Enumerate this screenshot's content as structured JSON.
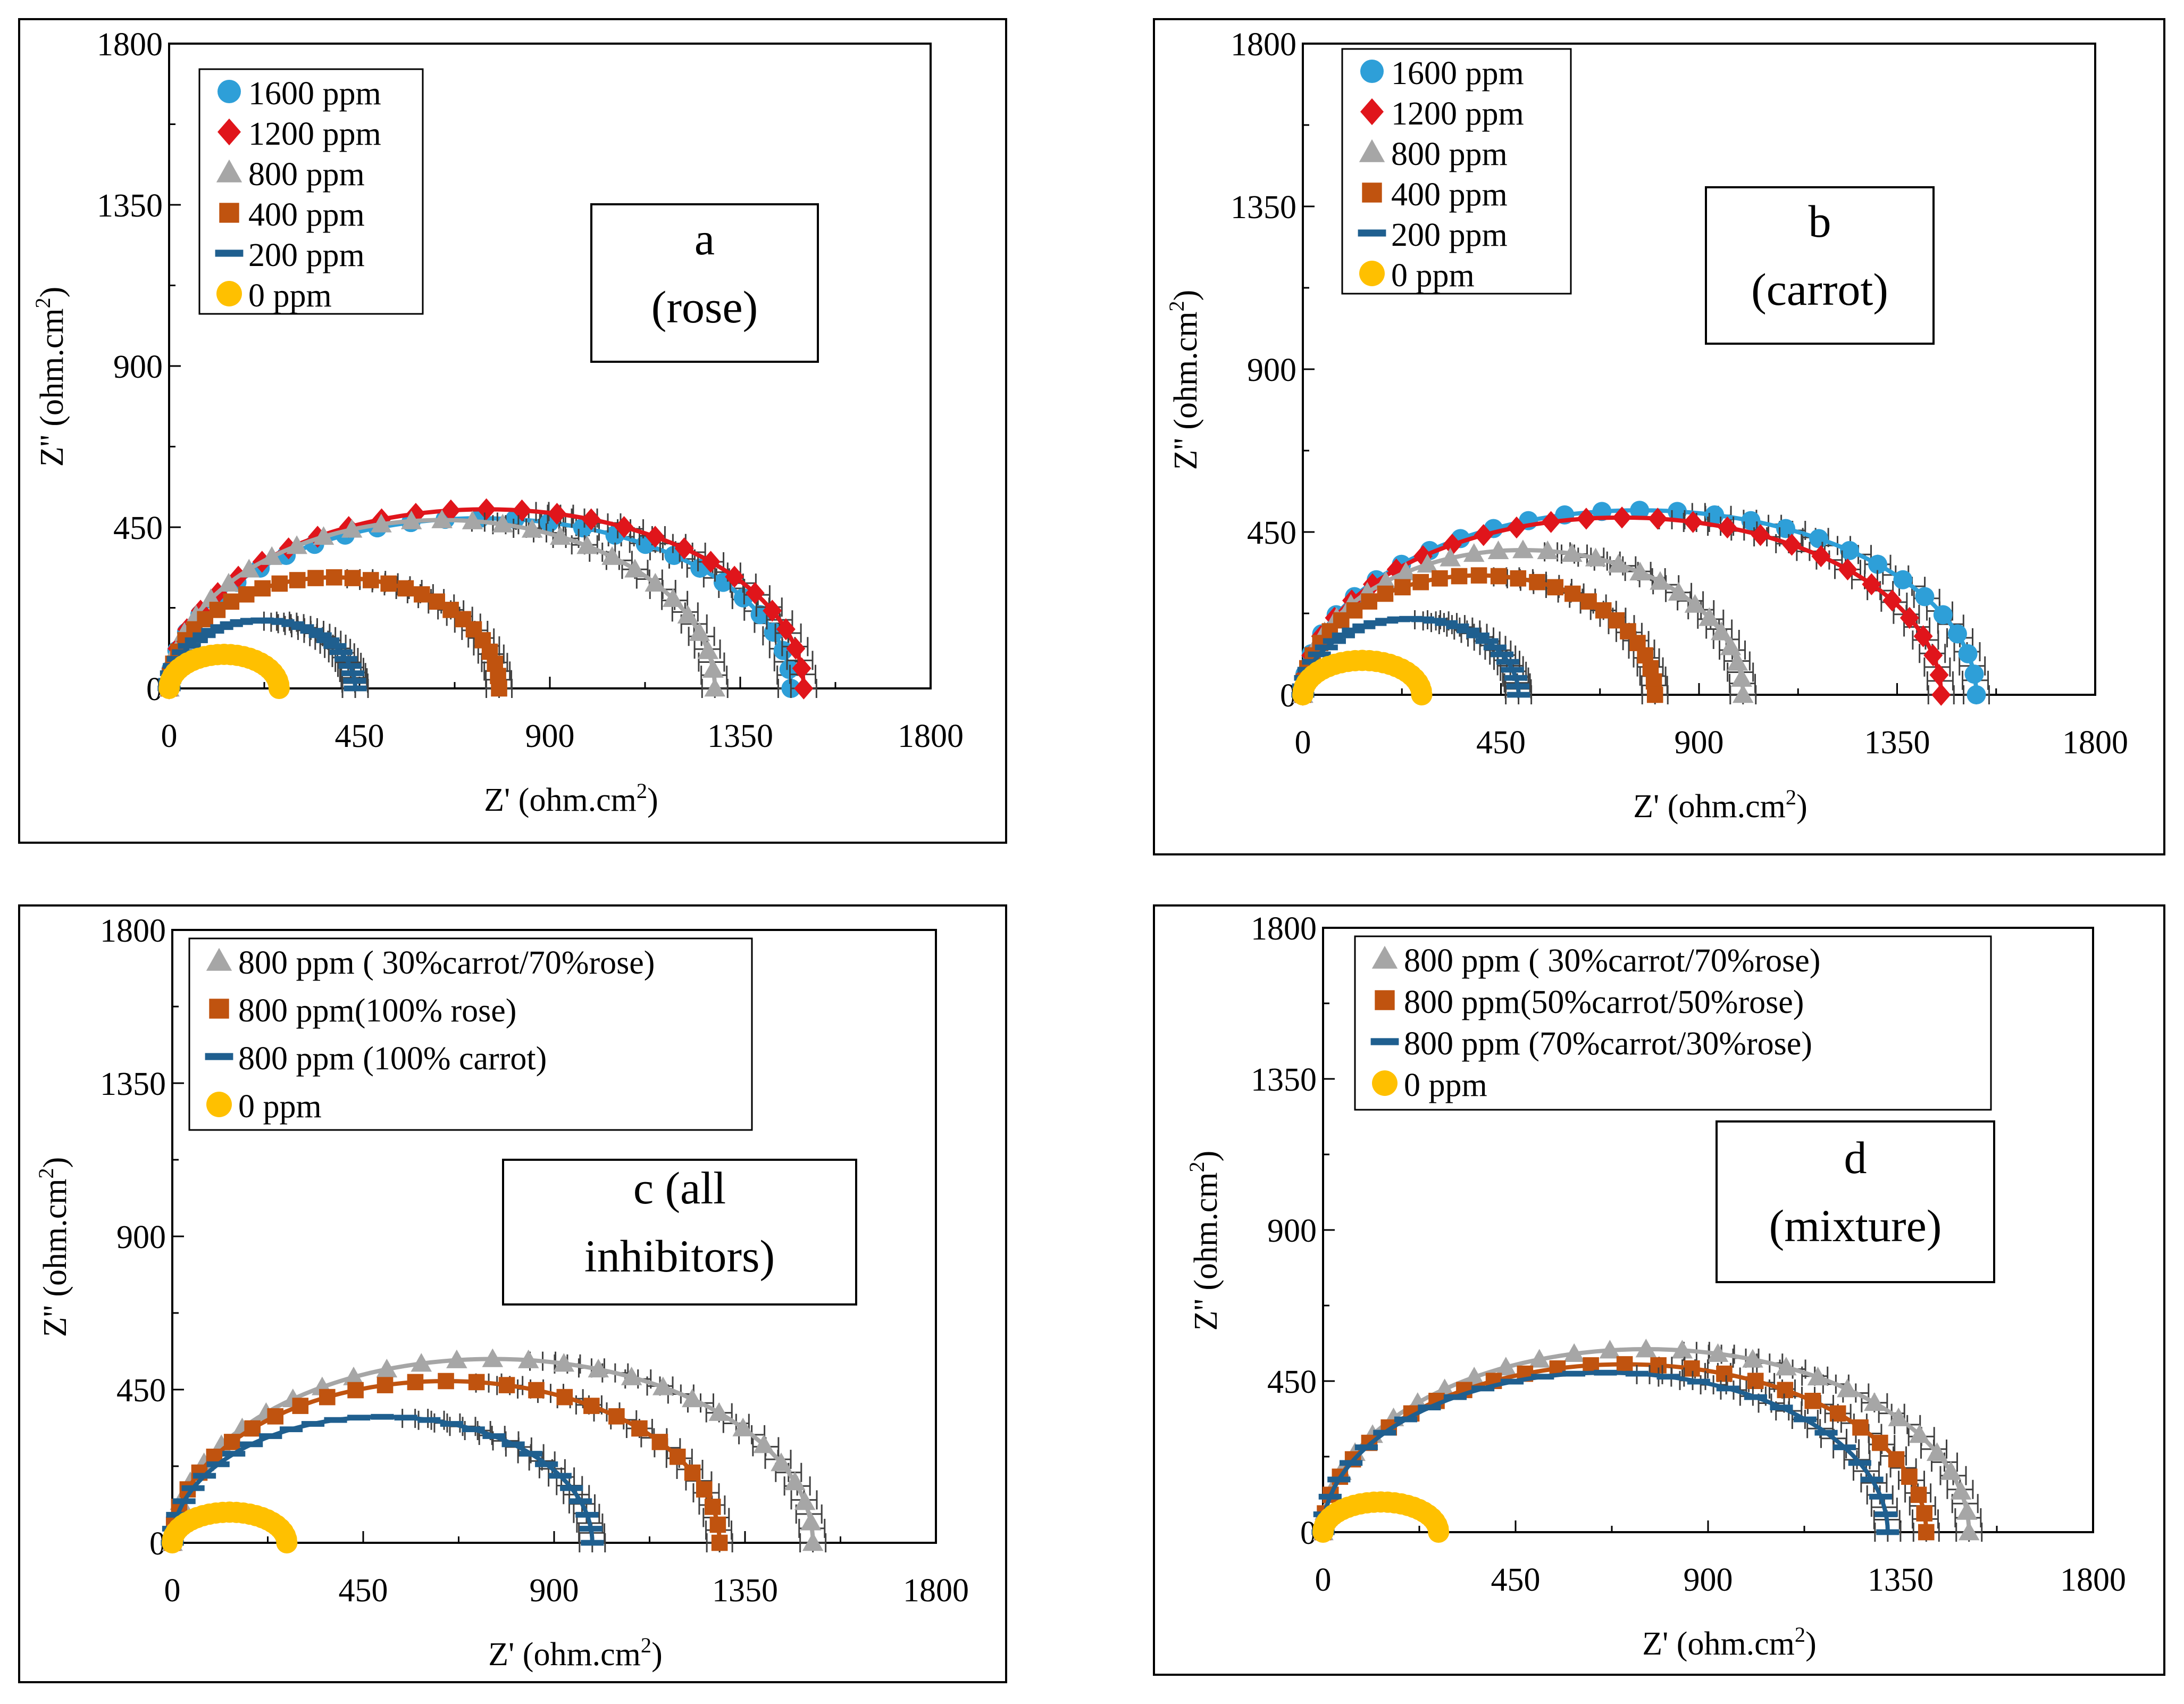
{
  "figure": {
    "panels": [
      {
        "id": "a",
        "label_lines": [
          "a",
          "(rose)"
        ],
        "xlabel": "Z' (ohm.cm2)",
        "ylabel": "Z'' (ohm.cm2)",
        "chart_ref": 0
      },
      {
        "id": "b",
        "label_lines": [
          "b",
          "(carrot)"
        ],
        "xlabel": "Z' (ohm.cm2)",
        "ylabel": "Z'' (ohm.cm2)",
        "chart_ref": 1
      },
      {
        "id": "c",
        "label_lines": [
          "c (all",
          "inhibitors)"
        ],
        "xlabel": "Z' (ohm.cm2)",
        "ylabel": "Z'' (ohm.cm2)",
        "chart_ref": 2
      },
      {
        "id": "d",
        "label_lines": [
          "d",
          "(mixture)"
        ],
        "xlabel": "Z' (ohm.cm2)",
        "ylabel": "Z'' (ohm.cm2)",
        "chart_ref": 3
      }
    ]
  },
  "colors": {
    "blue": "#2e9fd8",
    "red": "#e0151b",
    "gray": "#a6a6a6",
    "orange": "#c0530f",
    "navy": "#1f5f8f",
    "yellow": "#ffc000",
    "errorbar": "#404040"
  },
  "chart_data": [
    {
      "type": "scatter",
      "title": "a (rose)",
      "xlabel": "Z' (ohm.cm2)",
      "ylabel": "Z'' (ohm.cm2)",
      "xlim": [
        0,
        1800
      ],
      "ylim": [
        0,
        1800
      ],
      "xticks": [
        0,
        450,
        900,
        1350,
        1800
      ],
      "yticks": [
        0,
        450,
        900,
        1350,
        1800
      ],
      "legend_position": "top-left",
      "series": [
        {
          "name": "1600 ppm",
          "marker": "circle",
          "color": "blue",
          "rct": 1470,
          "peak": 475,
          "center": 735,
          "r2": 0,
          "z2": 0,
          "errorbars": true
        },
        {
          "name": "1200 ppm",
          "marker": "diamond",
          "color": "red",
          "rct": 1440,
          "peak": 500,
          "center": 750,
          "r2": 0,
          "z2": 0,
          "errorbars": true
        },
        {
          "name": "800 ppm",
          "marker": "triangle",
          "color": "gray",
          "rct": 1290,
          "peak": 470,
          "center": 645,
          "r2": 0,
          "z2": 0,
          "errorbars": true
        },
        {
          "name": "400 ppm",
          "marker": "square",
          "color": "orange",
          "rct": 780,
          "peak": 310,
          "center": 390,
          "r2": 0,
          "z2": 0,
          "errorbars": true
        },
        {
          "name": "200 ppm",
          "marker": "dash",
          "color": "navy",
          "rct": 440,
          "peak": 190,
          "center": 220,
          "r2": 0,
          "z2": 0,
          "errorbars": true
        },
        {
          "name": "0 ppm",
          "marker": "circle",
          "color": "yellow",
          "rct": 260,
          "peak": 95,
          "center": 130,
          "r2": 0,
          "z2": 0,
          "errorbars": false
        }
      ]
    },
    {
      "type": "scatter",
      "title": "b (carrot)",
      "xlabel": "Z' (ohm.cm2)",
      "ylabel": "Z'' (ohm.cm2)",
      "xlim": [
        0,
        1800
      ],
      "ylim": [
        0,
        1800
      ],
      "xticks": [
        0,
        450,
        900,
        1350,
        1800
      ],
      "yticks": [
        0,
        450,
        900,
        1350,
        1800
      ],
      "legend_position": "top-left",
      "series": [
        {
          "name": "1600 ppm",
          "marker": "circle",
          "color": "blue",
          "rct": 1530,
          "peak": 510,
          "center": 765,
          "r2": 0,
          "z2": 0,
          "errorbars": true
        },
        {
          "name": "1200 ppm",
          "marker": "diamond",
          "color": "red",
          "rct": 1450,
          "peak": 490,
          "center": 725,
          "r2": 0,
          "z2": 0,
          "errorbars": true
        },
        {
          "name": "800 ppm",
          "marker": "triangle",
          "color": "gray",
          "rct": 1000,
          "peak": 400,
          "center": 500,
          "r2": 0,
          "z2": 0,
          "errorbars": true
        },
        {
          "name": "400 ppm",
          "marker": "square",
          "color": "orange",
          "rct": 800,
          "peak": 330,
          "center": 400,
          "r2": 0,
          "z2": 0,
          "errorbars": true
        },
        {
          "name": "200 ppm",
          "marker": "dash",
          "color": "navy",
          "rct": 490,
          "peak": 210,
          "center": 245,
          "r2": 0,
          "z2": 0,
          "errorbars": true
        },
        {
          "name": "0 ppm",
          "marker": "circle",
          "color": "yellow",
          "rct": 270,
          "peak": 95,
          "center": 135,
          "r2": 0,
          "z2": 0,
          "errorbars": false
        }
      ]
    },
    {
      "type": "scatter",
      "title": "c (all inhibitors)",
      "xlabel": "Z' (ohm.cm2)",
      "ylabel": "Z'' (ohm.cm2)",
      "xlim": [
        0,
        1800
      ],
      "ylim": [
        0,
        1800
      ],
      "xticks": [
        0,
        450,
        900,
        1350,
        1800
      ],
      "yticks": [
        0,
        450,
        900,
        1350,
        1800
      ],
      "legend_position": "top-left",
      "series": [
        {
          "name": "800 ppm ( 30%carrot/70%rose)",
          "marker": "triangle",
          "color": "gray",
          "rct": 1510,
          "peak": 540,
          "center": 755,
          "r2": 0,
          "z2": 0,
          "errorbars": true
        },
        {
          "name": "800 ppm(100% rose)",
          "marker": "square",
          "color": "orange",
          "rct": 1290,
          "peak": 475,
          "center": 645,
          "r2": 0,
          "z2": 0,
          "errorbars": true
        },
        {
          "name": "800 ppm (100% carrot)",
          "marker": "dash",
          "color": "navy",
          "rct": 990,
          "peak": 370,
          "center": 495,
          "r2": 0,
          "z2": 0,
          "errorbars": true
        },
        {
          "name": "0 ppm",
          "marker": "circle",
          "color": "yellow",
          "rct": 270,
          "peak": 90,
          "center": 135,
          "r2": 0,
          "z2": 0,
          "errorbars": false
        }
      ]
    },
    {
      "type": "scatter",
      "title": "d (mixture)",
      "xlabel": "Z' (ohm.cm2)",
      "ylabel": "Z'' (ohm.cm2)",
      "xlim": [
        0,
        1800
      ],
      "ylim": [
        0,
        1800
      ],
      "xticks": [
        0,
        450,
        900,
        1350,
        1800
      ],
      "yticks": [
        0,
        450,
        900,
        1350,
        1800
      ],
      "legend_position": "top-left",
      "series": [
        {
          "name": "800 ppm ( 30%carrot/70%rose)",
          "marker": "triangle",
          "color": "gray",
          "rct": 1510,
          "peak": 545,
          "center": 755,
          "r2": 0,
          "z2": 0,
          "errorbars": true
        },
        {
          "name": "800 ppm(50%carrot/50%rose)",
          "marker": "square",
          "color": "orange",
          "rct": 1410,
          "peak": 500,
          "center": 705,
          "r2": 0,
          "z2": 0,
          "errorbars": true
        },
        {
          "name": "800 ppm (70%carrot/30%rose)",
          "marker": "dash",
          "color": "navy",
          "rct": 1320,
          "peak": 475,
          "center": 660,
          "r2": 0,
          "z2": 0,
          "errorbars": true
        },
        {
          "name": "0 ppm",
          "marker": "circle",
          "color": "yellow",
          "rct": 270,
          "peak": 90,
          "center": 135,
          "r2": 0,
          "z2": 0,
          "errorbars": false
        }
      ]
    }
  ]
}
